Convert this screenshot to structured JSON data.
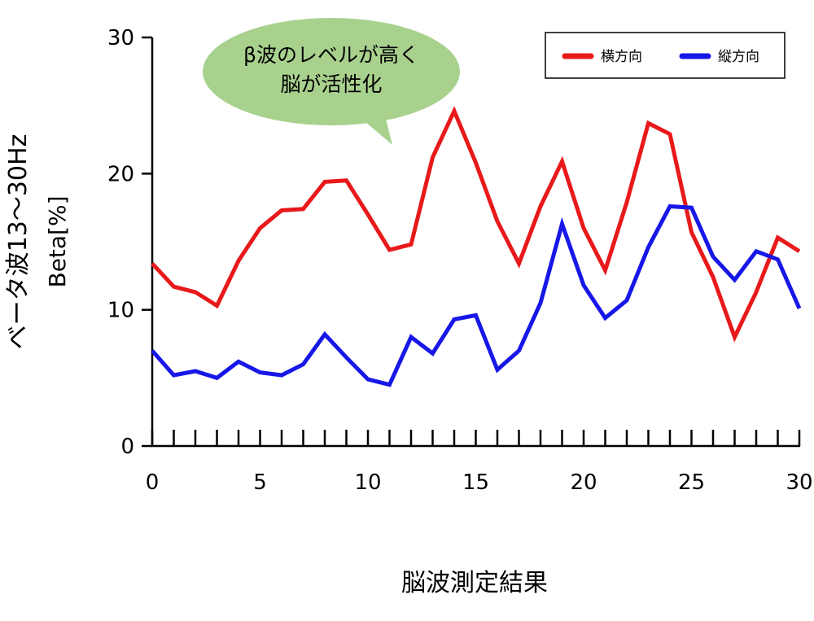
{
  "chart_data": {
    "type": "line",
    "xlabel": "脳波測定結果",
    "ylabel": [
      "ベータ波13〜30Hz",
      "Beta[%]"
    ],
    "xlim": [
      0,
      30
    ],
    "ylim": [
      0,
      30
    ],
    "x_ticks": [
      0,
      5,
      10,
      15,
      20,
      25,
      30
    ],
    "y_ticks": [
      0,
      10,
      20,
      30
    ],
    "grid": false,
    "legend_position": "top-right",
    "annotation": [
      "β波のレベルが高く",
      "脳が活性化"
    ],
    "x": [
      0,
      1,
      2,
      3,
      4,
      5,
      6,
      7,
      8,
      9,
      10,
      11,
      12,
      13,
      14,
      15,
      16,
      17,
      18,
      19,
      20,
      21,
      22,
      23,
      24,
      25,
      26,
      27,
      28,
      29,
      30
    ],
    "series": [
      {
        "name": "横方向",
        "color": "#e8191a",
        "values": [
          13.4,
          11.7,
          11.3,
          10.3,
          13.6,
          16.0,
          17.3,
          17.4,
          19.4,
          19.5,
          17.0,
          14.4,
          14.8,
          21.2,
          24.6,
          20.8,
          16.5,
          13.4,
          17.6,
          20.9,
          16.0,
          12.9,
          17.9,
          23.7,
          22.9,
          15.7,
          12.4,
          8.0,
          11.3,
          15.3,
          14.3
        ]
      },
      {
        "name": "縦方向",
        "color": "#1717e8",
        "values": [
          7.0,
          5.2,
          5.5,
          5.0,
          6.2,
          5.4,
          5.2,
          6.0,
          8.2,
          6.5,
          4.9,
          4.5,
          8.0,
          6.8,
          9.3,
          9.6,
          5.6,
          7.0,
          10.5,
          16.3,
          11.8,
          9.4,
          10.7,
          14.6,
          17.6,
          17.5,
          13.9,
          12.2,
          14.3,
          13.7,
          10.1
        ]
      }
    ]
  }
}
